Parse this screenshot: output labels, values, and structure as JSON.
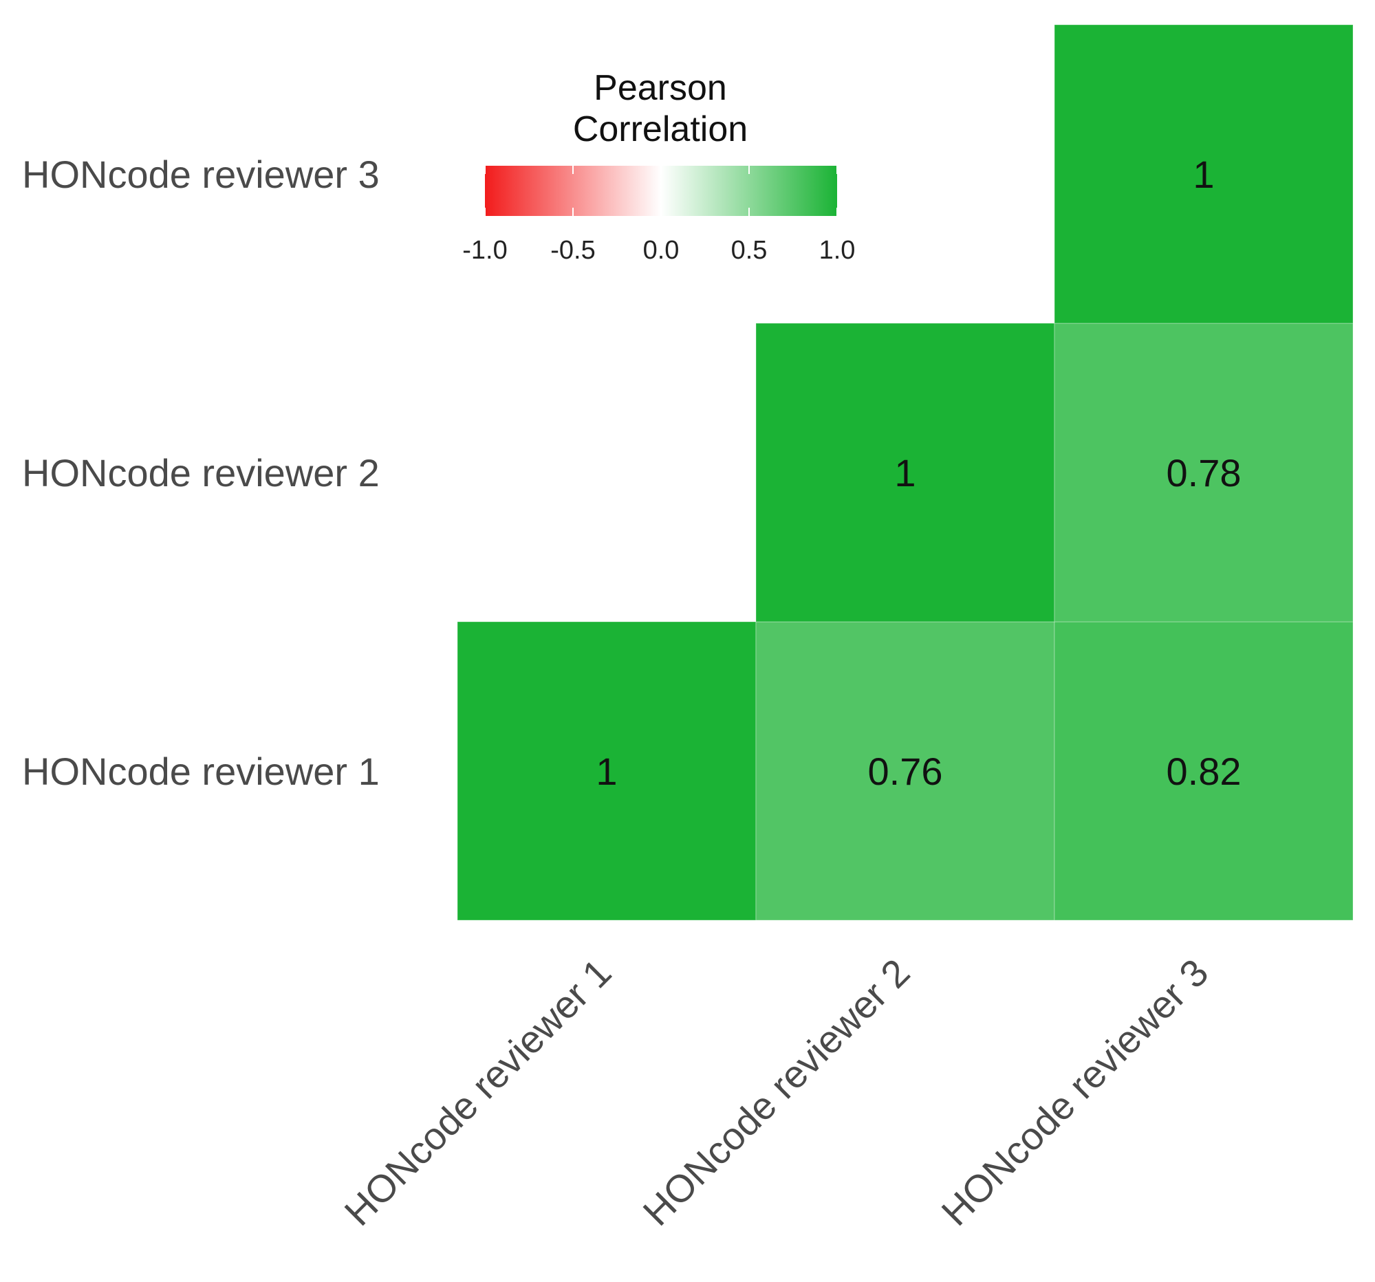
{
  "chart_data": {
    "type": "heatmap",
    "rows": [
      "HONcode reviewer 1",
      "HONcode reviewer 2",
      "HONcode reviewer 3"
    ],
    "columns": [
      "HONcode reviewer 1",
      "HONcode reviewer 2",
      "HONcode reviewer 3"
    ],
    "cells": [
      {
        "row": "HONcode reviewer 1",
        "col": "HONcode reviewer 1",
        "value": 1,
        "label": "1"
      },
      {
        "row": "HONcode reviewer 1",
        "col": "HONcode reviewer 2",
        "value": 0.76,
        "label": "0.76"
      },
      {
        "row": "HONcode reviewer 1",
        "col": "HONcode reviewer 3",
        "value": 0.82,
        "label": "0.82"
      },
      {
        "row": "HONcode reviewer 2",
        "col": "HONcode reviewer 2",
        "value": 1,
        "label": "1"
      },
      {
        "row": "HONcode reviewer 2",
        "col": "HONcode reviewer 3",
        "value": 0.78,
        "label": "0.78"
      },
      {
        "row": "HONcode reviewer 3",
        "col": "HONcode reviewer 3",
        "value": 1,
        "label": "1"
      }
    ],
    "matrix_shape": "upper-triangle",
    "legend": {
      "title_lines": [
        "Pearson",
        "Correlation"
      ],
      "range": [
        -1,
        1
      ],
      "ticks": [
        -1.0,
        -0.5,
        0.0,
        0.5,
        1.0
      ],
      "tick_labels": [
        "-1.0",
        "-0.5",
        "0.0",
        "0.5",
        "1.0"
      ],
      "placement": "top-left",
      "colors": {
        "low": "#f21c1c",
        "mid": "#ffffff",
        "high": "#1bb335"
      }
    }
  }
}
